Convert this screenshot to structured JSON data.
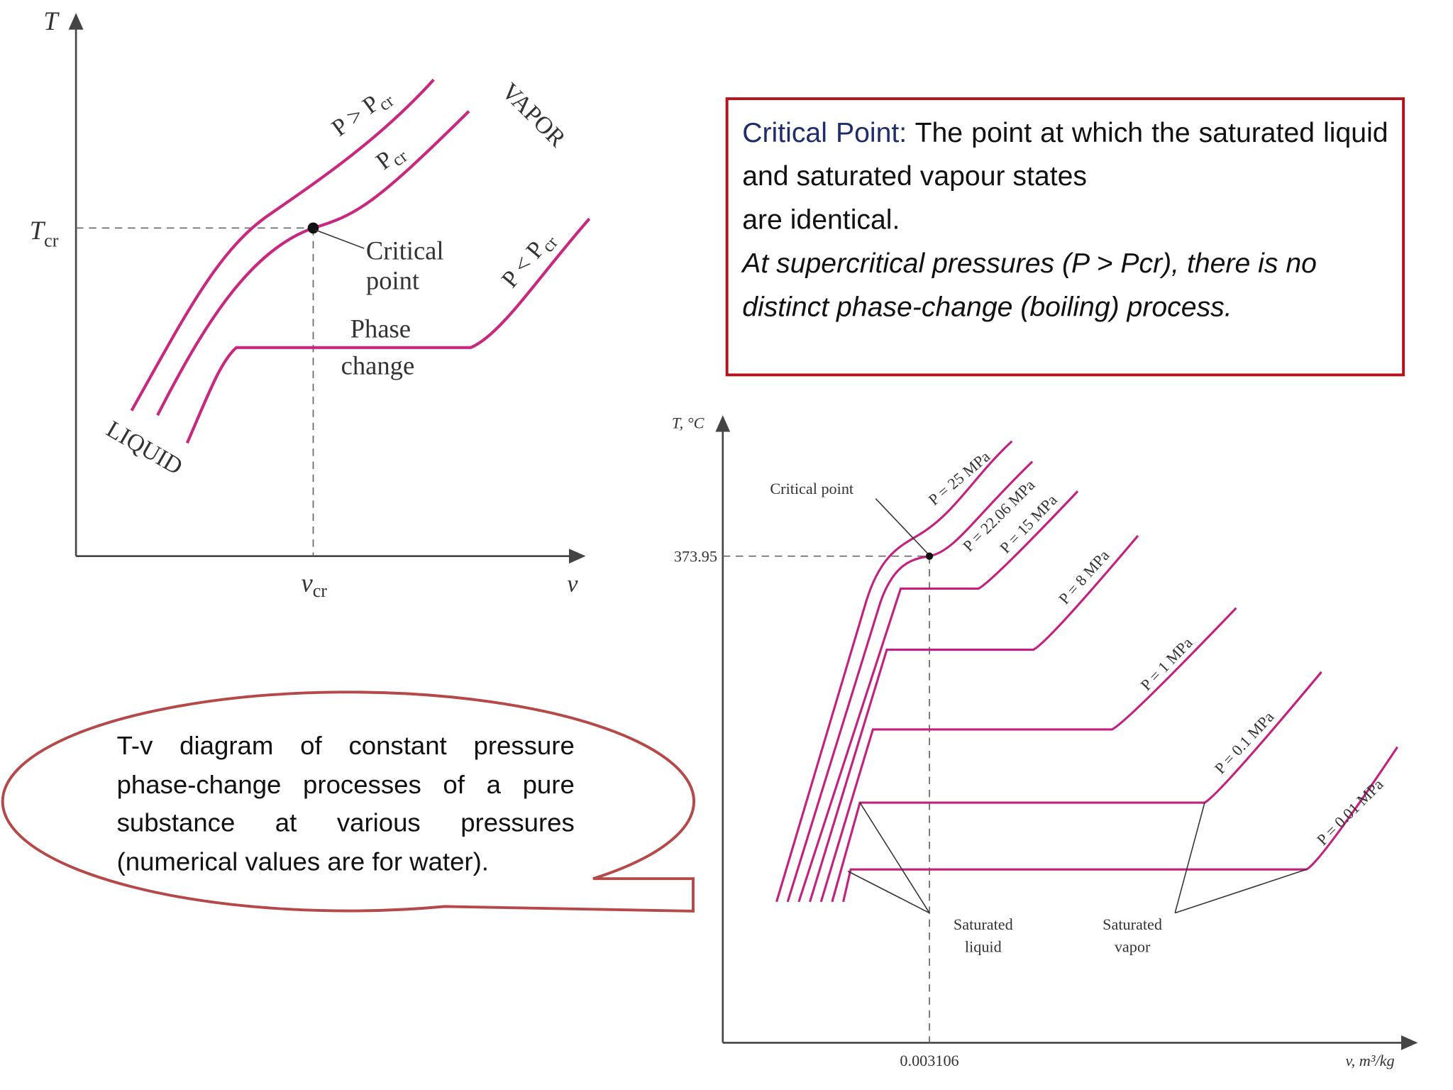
{
  "left_diagram": {
    "y_axis_label": "T",
    "x_axis_label": "v",
    "t_cr": {
      "symbol": "T",
      "subscript": "cr"
    },
    "v_cr": {
      "symbol": "v",
      "subscript": "cr"
    },
    "curve_labels": [
      {
        "text": "P > P",
        "subscript": "cr"
      },
      {
        "text": "P",
        "subscript": "cr"
      },
      {
        "text": "P < P",
        "subscript": "cr"
      }
    ],
    "critical_point": [
      "Critical",
      "point"
    ],
    "phase_change": [
      "Phase",
      "change"
    ],
    "vapor": "VAPOR",
    "liquid": "LIQUID"
  },
  "definition_box": {
    "term": "Critical Point:",
    "definition": "The point at which the saturated liquid and saturated vapour states",
    "continuation": "are identical.",
    "note": "At supercritical pressures (P > Pcr), there is no distinct phase-change (boiling) process."
  },
  "caption": "T-v diagram of constant pressure phase-change processes of a pure substance at various pressures (numerical values are for water).",
  "right_diagram": {
    "y_axis_label": "T, °C",
    "x_axis_label": "v, m³/kg",
    "critical_temperature": "373.95",
    "critical_volume": "0.003106",
    "critical_point": "Critical point",
    "pressure_labels": [
      "P = 25 MPa",
      "P = 22.06 MPa",
      "P = 15 MPa",
      "P = 8 MPa",
      "P = 1 MPa",
      "P = 0.1 MPa",
      "P = 0.01 MPa"
    ],
    "saturated_liquid": [
      "Saturated",
      "liquid"
    ],
    "saturated_vapor": [
      "Saturated",
      "vapor"
    ]
  }
}
